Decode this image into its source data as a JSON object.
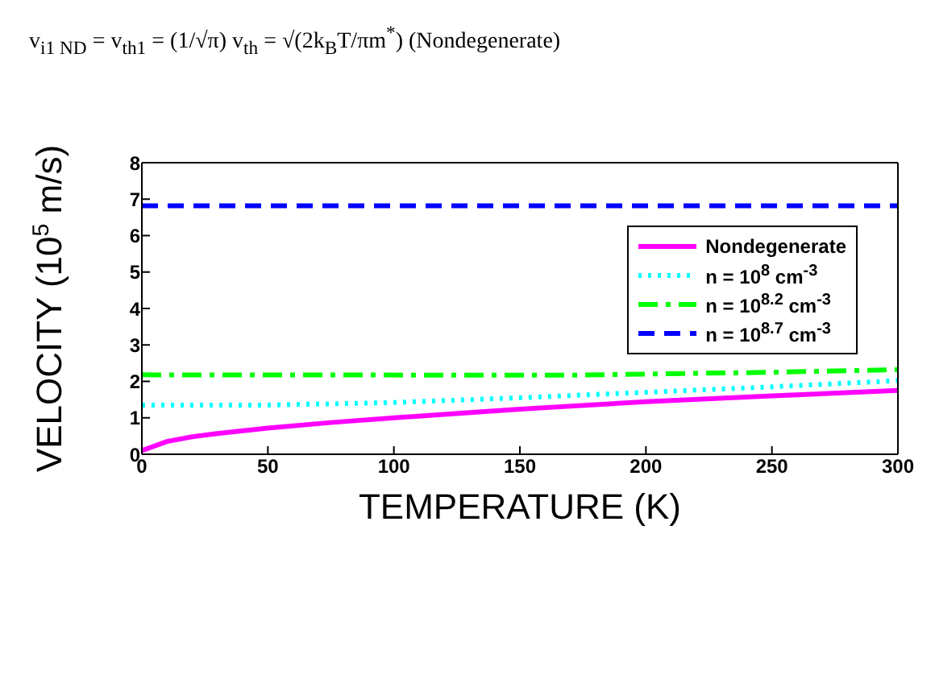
{
  "chart_data": {
    "type": "line",
    "xlabel": "TEMPERATURE (K)",
    "ylabel": "VELOCITY (10$^{5}$ m/s)",
    "annotations": [
      "v$_{i1 ND}$ = v$_{th1}$ = (1/√π) v$_{th}$ = √(2k$_{B}$T/πm$^{*}$)  (Nondegenerate)"
    ],
    "xlim": [
      0,
      300
    ],
    "xticks": [
      0,
      50,
      100,
      150,
      200,
      250,
      300
    ],
    "ylim": [
      0,
      8
    ],
    "yticks": [
      0,
      1,
      2,
      3,
      4,
      5,
      6,
      7,
      8
    ],
    "grid": false,
    "legend": "right",
    "marker": "none",
    "series": [
      {
        "name": "Nondegenerate",
        "color": "#ff00ff",
        "line_style": "solid",
        "x": [
          0,
          10,
          20,
          30,
          50,
          75,
          100,
          150,
          200,
          250,
          300
        ],
        "values": [
          0.1,
          0.35,
          0.48,
          0.57,
          0.72,
          0.87,
          1.0,
          1.24,
          1.44,
          1.6,
          1.75
        ]
      },
      {
        "name": "n = 10$^{8}$ cm$^{-3}$",
        "color": "#00ffff",
        "line_style": "dotted",
        "x": [
          0,
          50,
          100,
          150,
          200,
          250,
          300
        ],
        "values": [
          1.35,
          1.35,
          1.42,
          1.55,
          1.7,
          1.85,
          2.02
        ]
      },
      {
        "name": "n = 10$^{8.2}$ cm$^{-3}$",
        "color": "#00ff00",
        "line_style": "dashdot",
        "x": [
          0,
          170,
          200,
          250,
          300
        ],
        "values": [
          2.18,
          2.17,
          2.2,
          2.25,
          2.32
        ]
      },
      {
        "name": "n = 10$^{8.7}$ cm$^{-3}$",
        "color": "#0000ff",
        "line_style": "dashed",
        "x": [
          0,
          300
        ],
        "values": [
          6.82,
          6.82
        ]
      }
    ]
  }
}
